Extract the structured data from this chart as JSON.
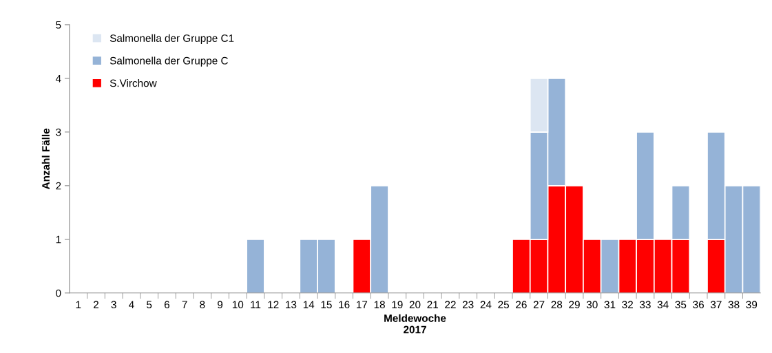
{
  "chart_data": {
    "type": "bar",
    "stacked": true,
    "xlabel": "Meldewoche\n2017",
    "ylabel": "Anzahl Fälle",
    "categories": [
      "1",
      "2",
      "3",
      "4",
      "5",
      "6",
      "7",
      "8",
      "9",
      "10",
      "11",
      "12",
      "13",
      "14",
      "15",
      "16",
      "17",
      "18",
      "19",
      "20",
      "21",
      "22",
      "23",
      "24",
      "25",
      "26",
      "27",
      "28",
      "29",
      "30",
      "31",
      "32",
      "33",
      "34",
      "35",
      "36",
      "37",
      "38",
      "39"
    ],
    "series": [
      {
        "name": "S.Virchow",
        "color": "#ff0000",
        "values": [
          0,
          0,
          0,
          0,
          0,
          0,
          0,
          0,
          0,
          0,
          0,
          0,
          0,
          0,
          0,
          0,
          1,
          0,
          0,
          0,
          0,
          0,
          0,
          0,
          0,
          1,
          1,
          2,
          2,
          1,
          0,
          1,
          1,
          1,
          1,
          0,
          1,
          0,
          0
        ]
      },
      {
        "name": "Salmonella der Gruppe C",
        "color": "#95b3d7",
        "values": [
          0,
          0,
          0,
          0,
          0,
          0,
          0,
          0,
          0,
          0,
          1,
          0,
          0,
          1,
          1,
          0,
          0,
          2,
          0,
          0,
          0,
          0,
          0,
          0,
          0,
          0,
          2,
          2,
          0,
          0,
          1,
          0,
          2,
          0,
          1,
          0,
          2,
          2,
          2
        ]
      },
      {
        "name": "Salmonella der Gruppe C1",
        "color": "#dce6f2",
        "values": [
          0,
          0,
          0,
          0,
          0,
          0,
          0,
          0,
          0,
          0,
          0,
          0,
          0,
          0,
          0,
          0,
          0,
          0,
          0,
          0,
          0,
          0,
          0,
          0,
          0,
          0,
          1,
          0,
          0,
          0,
          0,
          0,
          0,
          0,
          0,
          0,
          0,
          0,
          0
        ]
      }
    ],
    "ylim": [
      0,
      5
    ],
    "yticks": [
      0,
      1,
      2,
      3,
      4,
      5
    ],
    "grid": false,
    "legend": "top left"
  }
}
